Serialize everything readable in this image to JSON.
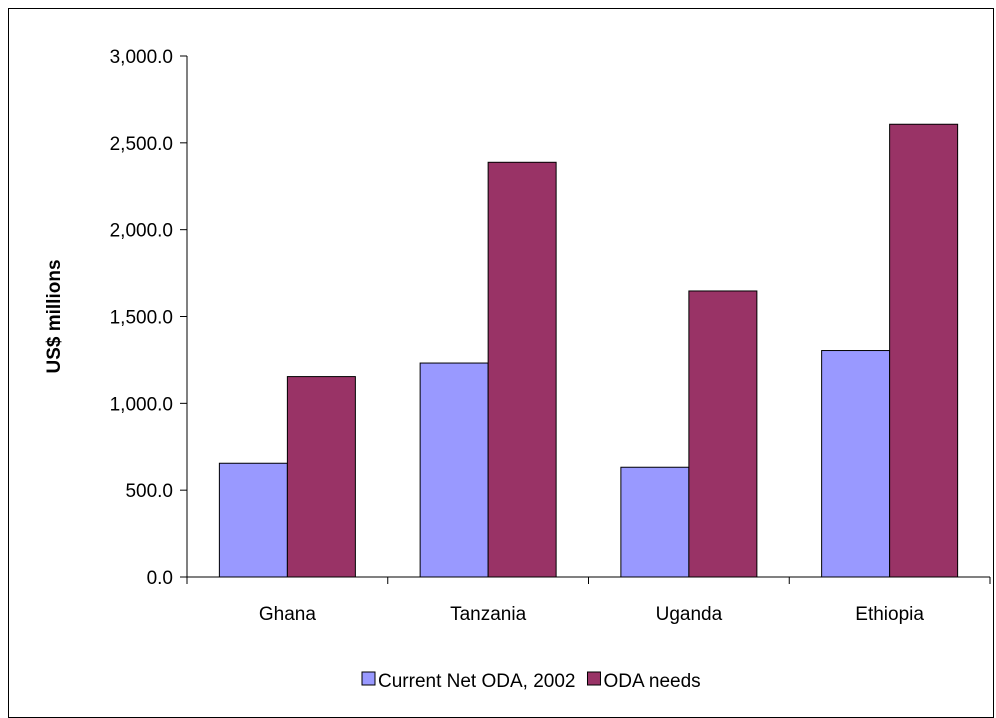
{
  "chart_data": {
    "type": "bar",
    "title": "",
    "xlabel": "",
    "ylabel": "US$ millions",
    "categories": [
      "Ghana",
      "Tanzania",
      "Uganda",
      "Ethiopia"
    ],
    "series": [
      {
        "name": "Current Net ODA, 2002",
        "color": "#9999ff",
        "values": [
          655,
          1232,
          632,
          1304
        ]
      },
      {
        "name": "ODA needs",
        "color": "#993366",
        "values": [
          1154,
          2388,
          1647,
          2607
        ]
      }
    ],
    "ylim": [
      0,
      3000
    ],
    "yticks": [
      0,
      500,
      1000,
      1500,
      2000,
      2500,
      3000
    ],
    "ytick_labels": [
      "0.0",
      "500.0",
      "1,000.0",
      "1,500.0",
      "2,000.0",
      "2,500.0",
      "3,000.0"
    ],
    "grid": false,
    "legend_position": "bottom"
  }
}
